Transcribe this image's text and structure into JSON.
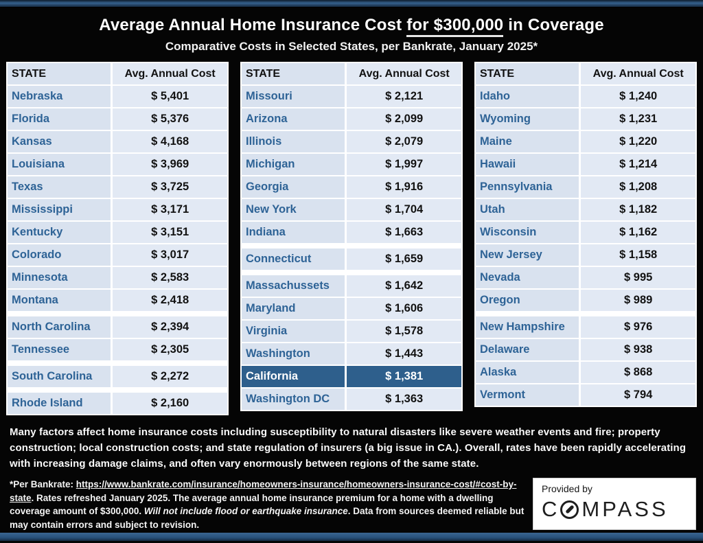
{
  "header": {
    "title_pre": "Average Annual Home Insurance Cost ",
    "title_underline": "for $300,000",
    "title_post": " in Coverage",
    "subtitle": "Comparative Costs in Selected States, per Bankrate, January 2025*"
  },
  "table_header": {
    "state": "STATE",
    "cost": "Avg. Annual Cost"
  },
  "tables": [
    {
      "rows": [
        {
          "state": "Nebraska",
          "cost": "$ 5,401"
        },
        {
          "state": "Florida",
          "cost": "$ 5,376"
        },
        {
          "state": "Kansas",
          "cost": "$ 4,168"
        },
        {
          "state": "Louisiana",
          "cost": "$ 3,969"
        },
        {
          "state": "Texas",
          "cost": "$ 3,725"
        },
        {
          "state": "Mississippi",
          "cost": "$ 3,171"
        },
        {
          "state": "Kentucky",
          "cost": "$ 3,151"
        },
        {
          "state": "Colorado",
          "cost": "$ 3,017"
        },
        {
          "state": "Minnesota",
          "cost": "$ 2,583"
        },
        {
          "state": "Montana",
          "cost": "$ 2,418"
        },
        {
          "state": "North Carolina",
          "cost": "$ 2,394",
          "gap_before": true
        },
        {
          "state": "Tennessee",
          "cost": "$ 2,305"
        },
        {
          "state": "South Carolina",
          "cost": "$ 2,272",
          "gap_before": true
        },
        {
          "state": "Rhode Island",
          "cost": "$ 2,160",
          "gap_before": true
        }
      ]
    },
    {
      "rows": [
        {
          "state": "Missouri",
          "cost": "$ 2,121"
        },
        {
          "state": "Arizona",
          "cost": "$ 2,099"
        },
        {
          "state": "Illinois",
          "cost": "$ 2,079"
        },
        {
          "state": "Michigan",
          "cost": "$ 1,997"
        },
        {
          "state": "Georgia",
          "cost": "$ 1,916"
        },
        {
          "state": "New York",
          "cost": "$ 1,704"
        },
        {
          "state": "Indiana",
          "cost": "$ 1,663"
        },
        {
          "state": "Connecticut",
          "cost": "$ 1,659",
          "gap_before": true
        },
        {
          "state": "Massachussets",
          "cost": "$ 1,642",
          "gap_before": true
        },
        {
          "state": "Maryland",
          "cost": "$ 1,606"
        },
        {
          "state": "Virginia",
          "cost": "$ 1,578"
        },
        {
          "state": "Washington",
          "cost": "$ 1,443"
        },
        {
          "state": "California",
          "cost": "$ 1,381",
          "highlight": true
        },
        {
          "state": "Washington DC",
          "cost": "$ 1,363"
        }
      ]
    },
    {
      "rows": [
        {
          "state": "Idaho",
          "cost": "$ 1,240"
        },
        {
          "state": "Wyoming",
          "cost": "$ 1,231"
        },
        {
          "state": "Maine",
          "cost": "$ 1,220"
        },
        {
          "state": "Hawaii",
          "cost": "$ 1,214"
        },
        {
          "state": "Pennsylvania",
          "cost": "$ 1,208"
        },
        {
          "state": "Utah",
          "cost": "$ 1,182"
        },
        {
          "state": "Wisconsin",
          "cost": "$ 1,162"
        },
        {
          "state": "New Jersey",
          "cost": "$ 1,158"
        },
        {
          "state": "Nevada",
          "cost": "$ 995"
        },
        {
          "state": "Oregon",
          "cost": "$ 989"
        },
        {
          "state": "New Hampshire",
          "cost": "$ 976",
          "gap_before": true
        },
        {
          "state": "Delaware",
          "cost": "$ 938"
        },
        {
          "state": "Alaska",
          "cost": "$ 868"
        },
        {
          "state": "Vermont",
          "cost": "$ 794"
        }
      ]
    }
  ],
  "notes": {
    "paragraph": "Many factors affect home insurance costs including susceptibility to natural disasters like severe weather events and fire; property construction; local construction costs; and state regulation of insurers (a big issue in CA.). Overall, rates have been rapidly accelerating with increasing damage claims, and often vary enormously between regions of the same state."
  },
  "footnote": {
    "prefix": "*Per Bankrate:  ",
    "link": "https://www.bankrate.com/insurance/homeowners-insurance/homeowners-insurance-cost/#cost-by-state",
    "middle": ". Rates refreshed January 2025. The average annual home insurance premium for a home with a dwelling coverage amount of $300,000. ",
    "italic": "Will not include flood or earthquake insurance",
    "after_italic": ". ",
    "last_line": "Data from sources deemed reliable but may contain errors and subject to revision."
  },
  "provider": {
    "label": "Provided by",
    "brand_pre": "C",
    "brand_post": "MPASS",
    "logo_icon": "compass-o-icon"
  },
  "colors": {
    "accent_blue_bar": "#35618e",
    "row_background": "#d9e2ef",
    "cost_background": "#e2e9f4",
    "state_text": "#2e6396",
    "highlight_row": "#2e5f8c",
    "title_text": "#ffffff",
    "background": "#050505"
  }
}
